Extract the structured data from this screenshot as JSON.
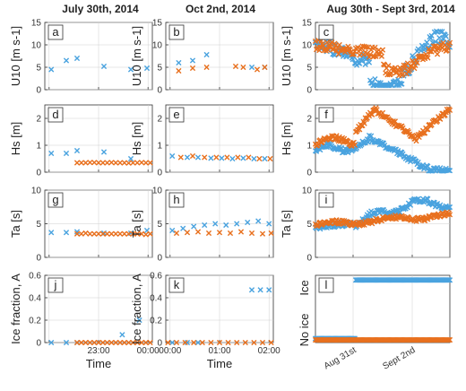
{
  "columns": [
    "July 30th, 2014",
    "Oct 2nd, 2014",
    "Aug 30th - Sept 3rd, 2014"
  ],
  "colors": {
    "series_a": "#4aa3df",
    "series_b": "#e8701e"
  },
  "chart_data": [
    {
      "type": "scatter",
      "panel": "a",
      "ylabel": "U10 [m s-1]",
      "ylim": [
        0,
        15
      ],
      "yticks": [
        0,
        5,
        10,
        15
      ],
      "xticklabels": [
        "",
        "",
        ""
      ],
      "series": [
        {
          "color": "#4aa3df",
          "x": [
            0.06,
            0.2,
            0.3,
            0.55,
            0.8,
            0.95
          ],
          "y": [
            4.5,
            6.5,
            7.0,
            5.2,
            4.5,
            4.8
          ]
        }
      ]
    },
    {
      "type": "scatter",
      "panel": "b",
      "ylabel": "U10 [m s-1]",
      "ylim": [
        0,
        15
      ],
      "yticks": [
        0,
        5,
        10,
        15
      ],
      "xticklabels": [
        "",
        "",
        ""
      ],
      "series": [
        {
          "color": "#4aa3df",
          "x": [
            0.12,
            0.25,
            0.38,
            0.8,
            0.92
          ],
          "y": [
            6.0,
            6.5,
            7.8,
            5.0,
            5.0
          ]
        },
        {
          "color": "#e8701e",
          "x": [
            0.12,
            0.25,
            0.38,
            0.65,
            0.72,
            0.85,
            0.92
          ],
          "y": [
            4.2,
            4.8,
            5.0,
            5.2,
            5.0,
            4.5,
            5.0
          ]
        }
      ]
    },
    {
      "type": "scatter",
      "panel": "c",
      "ylabel": "U10 [m s-1]",
      "dense": "u10",
      "ylim": [
        0,
        15
      ],
      "yticks": [
        0,
        5,
        10,
        15
      ],
      "xticklabels": [
        "",
        ""
      ]
    },
    {
      "type": "scatter",
      "panel": "d",
      "ylabel": "Hs [m]",
      "ylim": [
        0,
        2.5
      ],
      "yticks": [
        0,
        1,
        2
      ],
      "xticklabels": [
        "",
        "",
        ""
      ],
      "series": [
        {
          "color": "#4aa3df",
          "x": [
            0.06,
            0.2,
            0.3,
            0.55,
            0.8
          ],
          "y": [
            0.7,
            0.7,
            0.8,
            0.75,
            0.5
          ]
        },
        {
          "color": "#e8701e",
          "x": [
            0.3,
            0.34,
            0.38,
            0.42,
            0.46,
            0.5,
            0.54,
            0.58,
            0.62,
            0.66,
            0.7,
            0.74,
            0.78,
            0.82,
            0.86,
            0.9,
            0.94,
            0.98
          ],
          "y": [
            0.35,
            0.35,
            0.35,
            0.36,
            0.36,
            0.35,
            0.35,
            0.35,
            0.36,
            0.35,
            0.35,
            0.35,
            0.34,
            0.35,
            0.35,
            0.36,
            0.35,
            0.35
          ]
        }
      ]
    },
    {
      "type": "scatter",
      "panel": "e",
      "ylabel": "Hs [m]",
      "ylim": [
        0,
        2.5
      ],
      "yticks": [
        0,
        1,
        2
      ],
      "xticklabels": [
        "",
        "",
        ""
      ],
      "series": [
        {
          "color": "#4aa3df",
          "x": [
            0.06,
            0.2,
            0.3,
            0.42,
            0.52,
            0.62,
            0.72,
            0.82,
            0.92
          ],
          "y": [
            0.6,
            0.55,
            0.55,
            0.52,
            0.52,
            0.5,
            0.52,
            0.5,
            0.5
          ]
        },
        {
          "color": "#e8701e",
          "x": [
            0.14,
            0.25,
            0.36,
            0.47,
            0.57,
            0.67,
            0.77,
            0.87,
            0.97
          ],
          "y": [
            0.55,
            0.6,
            0.55,
            0.55,
            0.55,
            0.55,
            0.55,
            0.5,
            0.5
          ]
        }
      ]
    },
    {
      "type": "scatter",
      "panel": "f",
      "ylabel": "Hs [m]",
      "dense": "hs",
      "ylim": [
        0,
        2.5
      ],
      "yticks": [
        0,
        1,
        2
      ],
      "xticklabels": [
        "",
        ""
      ]
    },
    {
      "type": "scatter",
      "panel": "g",
      "ylabel": "Ta [s]",
      "ylim": [
        0,
        10
      ],
      "yticks": [
        0,
        5,
        10
      ],
      "xticklabels": [
        "",
        "",
        ""
      ],
      "series": [
        {
          "color": "#4aa3df",
          "x": [
            0.06,
            0.2,
            0.3,
            0.55,
            0.8,
            0.95
          ],
          "y": [
            3.7,
            3.7,
            3.8,
            3.6,
            3.6,
            4.0
          ]
        },
        {
          "color": "#e8701e",
          "x": [
            0.3,
            0.34,
            0.38,
            0.42,
            0.46,
            0.5,
            0.54,
            0.58,
            0.62,
            0.66,
            0.7,
            0.74,
            0.78,
            0.82,
            0.86,
            0.9,
            0.94,
            0.98
          ],
          "y": [
            3.5,
            3.5,
            3.6,
            3.5,
            3.5,
            3.5,
            3.5,
            3.5,
            3.5,
            3.5,
            3.5,
            3.5,
            3.5,
            3.5,
            3.5,
            3.5,
            3.4,
            3.5
          ]
        }
      ]
    },
    {
      "type": "scatter",
      "panel": "h",
      "ylabel": "Ta [s]",
      "ylim": [
        0,
        10
      ],
      "yticks": [
        0,
        5,
        10
      ],
      "xticklabels": [
        "",
        "",
        ""
      ],
      "series": [
        {
          "color": "#4aa3df",
          "x": [
            0.06,
            0.16,
            0.26,
            0.36,
            0.46,
            0.56,
            0.66,
            0.76,
            0.86,
            0.96
          ],
          "y": [
            4.0,
            4.3,
            4.6,
            4.8,
            5.0,
            4.8,
            5.0,
            5.2,
            5.4,
            5.0
          ]
        },
        {
          "color": "#e8701e",
          "x": [
            0.1,
            0.2,
            0.3,
            0.4,
            0.5,
            0.6,
            0.7,
            0.8,
            0.9,
            0.98
          ],
          "y": [
            3.6,
            3.7,
            3.8,
            3.6,
            3.7,
            3.6,
            3.8,
            3.6,
            3.5,
            3.6
          ]
        }
      ]
    },
    {
      "type": "scatter",
      "panel": "i",
      "ylabel": "Ta [s]",
      "dense": "ta",
      "ylim": [
        0,
        10
      ],
      "yticks": [
        0,
        5,
        10
      ],
      "xticklabels": [
        "",
        ""
      ]
    },
    {
      "type": "scatter",
      "panel": "j",
      "ylabel": "Ice fraction, A",
      "ylim": [
        0,
        0.6
      ],
      "yticks": [
        0,
        0.2,
        0.4,
        0.6
      ],
      "yticklabels": [
        "0",
        "0.2",
        "0.4",
        "0.6"
      ],
      "xticklabels": [
        "",
        "23:00",
        "00:00"
      ],
      "xlabel": "Time",
      "series": [
        {
          "color": "#4aa3df",
          "x": [
            0.06,
            0.2,
            0.3,
            0.72,
            0.88
          ],
          "y": [
            0.0,
            0.0,
            0.0,
            0.07,
            0.2
          ]
        },
        {
          "color": "#e8701e",
          "x": [
            0.3,
            0.34,
            0.38,
            0.42,
            0.46,
            0.5,
            0.54,
            0.58,
            0.62,
            0.66,
            0.7,
            0.74,
            0.78,
            0.82,
            0.86,
            0.9,
            0.94,
            0.98
          ],
          "y": [
            0,
            0,
            0,
            0,
            0,
            0,
            0,
            0,
            0,
            0,
            0,
            0,
            0,
            0,
            0,
            0,
            0,
            0
          ]
        }
      ]
    },
    {
      "type": "scatter",
      "panel": "k",
      "ylabel": "Ice fraction, A",
      "ylim": [
        0,
        0.6
      ],
      "yticks": [
        0,
        0.2,
        0.4,
        0.6
      ],
      "yticklabels": [
        "0",
        "0.2",
        "0.4",
        "0.6"
      ],
      "xticklabels": [
        "00:00",
        "01:00",
        "02:00"
      ],
      "xlabel": "Time",
      "series": [
        {
          "color": "#4aa3df",
          "x": [
            0.06,
            0.2,
            0.3,
            0.8,
            0.88,
            0.96
          ],
          "y": [
            0.0,
            0.0,
            0.0,
            0.47,
            0.47,
            0.47
          ]
        },
        {
          "color": "#e8701e",
          "x": [
            0.02,
            0.1,
            0.18,
            0.26,
            0.34,
            0.42,
            0.5,
            0.58,
            0.66,
            0.74,
            0.82,
            0.9,
            0.98
          ],
          "y": [
            0,
            0,
            0,
            0,
            0,
            0,
            0,
            0,
            0,
            0,
            0,
            0,
            0
          ]
        }
      ]
    },
    {
      "type": "scatter",
      "panel": "l",
      "ylabel_top": "Ice",
      "ylabel_bottom": "No ice",
      "dense": "ice",
      "xticklabels": [
        "Aug 31st",
        "Sept 2nd"
      ]
    }
  ]
}
